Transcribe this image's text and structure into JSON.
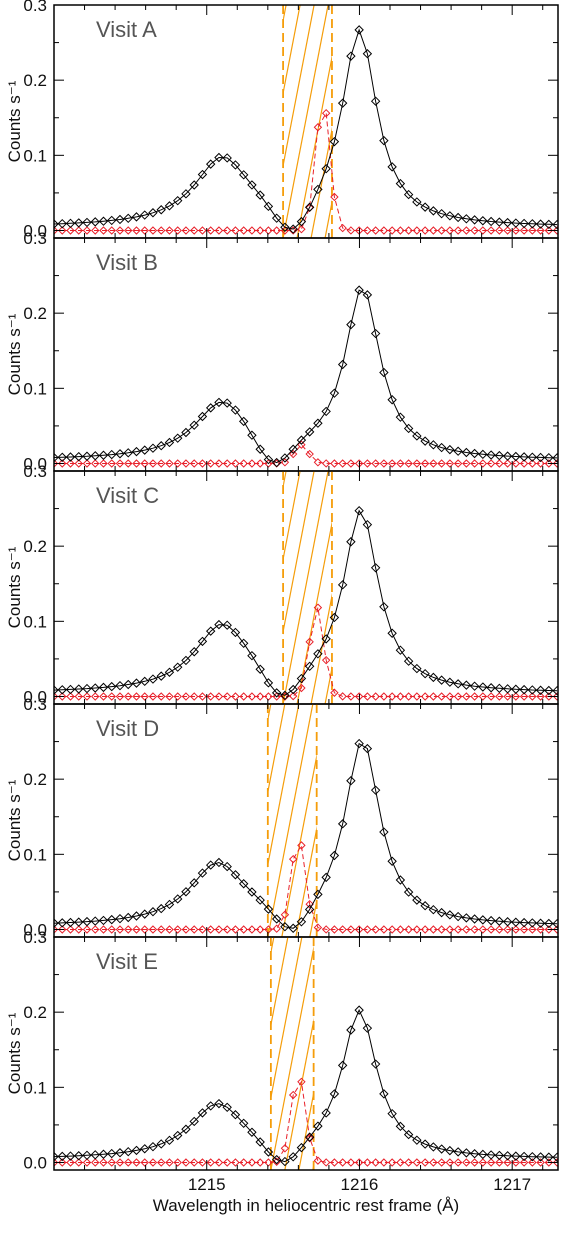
{
  "chart_data": {
    "type": "line",
    "xlabel": "Wavelength in heliocentric rest frame (Å)",
    "ylabel": "Counts s⁻¹",
    "xlim": [
      1214.0,
      1217.3
    ],
    "ylim": [
      -0.01,
      0.3
    ],
    "x_ticks": [
      1215,
      1216,
      1217
    ],
    "x_tick_labels": [
      "1215",
      "1216",
      "1217"
    ],
    "y_ticks": [
      0.0,
      0.1,
      0.2,
      0.3
    ],
    "y_tick_labels": [
      "0.0",
      "0.1",
      "0.2",
      "0.3"
    ],
    "grid": false,
    "colors": {
      "observed": "#000000",
      "model": "#e8202a",
      "band": "#f59d0a"
    },
    "panels": [
      {
        "label": "Visit A",
        "band": [
          1215.5,
          1215.82
        ],
        "black_peaks": [
          [
            1215.1,
            0.088,
            0.22
          ],
          [
            1216.0,
            0.258,
            0.14
          ]
        ],
        "notch": [
          1215.55,
          0.14
        ],
        "red_peak": [
          1215.76,
          0.175,
          0.065
        ]
      },
      {
        "label": "Visit B",
        "band": null,
        "black_peaks": [
          [
            1215.1,
            0.073,
            0.22
          ],
          [
            1216.02,
            0.228,
            0.14
          ]
        ],
        "notch": [
          1215.45,
          0.14
        ],
        "red_peak": [
          1215.62,
          0.025,
          0.065
        ]
      },
      {
        "label": "Visit C",
        "band": [
          1215.5,
          1215.82
        ],
        "black_peaks": [
          [
            1215.1,
            0.087,
            0.22
          ],
          [
            1216.01,
            0.24,
            0.14
          ]
        ],
        "notch": [
          1215.5,
          0.14
        ],
        "red_peak": [
          1215.72,
          0.12,
          0.065
        ]
      },
      {
        "label": "Visit D",
        "band": [
          1215.4,
          1215.72
        ],
        "black_peaks": [
          [
            1215.07,
            0.08,
            0.22
          ],
          [
            1216.02,
            0.245,
            0.14
          ]
        ],
        "notch": [
          1215.55,
          0.14
        ],
        "red_peak": [
          1215.6,
          0.123,
          0.065
        ]
      },
      {
        "label": "Visit E",
        "band": [
          1215.42,
          1215.7
        ],
        "black_peaks": [
          [
            1215.07,
            0.07,
            0.22
          ],
          [
            1216.0,
            0.195,
            0.14
          ]
        ],
        "notch": [
          1215.5,
          0.14
        ],
        "red_peak": [
          1215.6,
          0.118,
          0.065
        ]
      }
    ]
  }
}
